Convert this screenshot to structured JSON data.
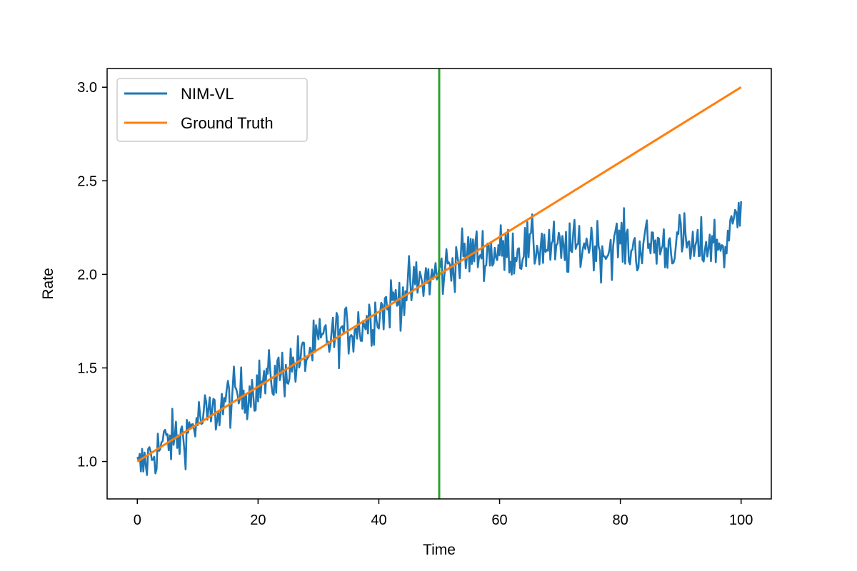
{
  "chart_data": {
    "type": "line",
    "title": "",
    "xlabel": "Time",
    "ylabel": "Rate",
    "xlim": [
      -5,
      105
    ],
    "ylim": [
      0.8,
      3.1
    ],
    "xticks": [
      "0",
      "20",
      "40",
      "60",
      "80",
      "100"
    ],
    "yticks": [
      "1.0",
      "1.5",
      "2.0",
      "2.5",
      "3.0"
    ],
    "grid": false,
    "legend_position": "top-left",
    "colors": {
      "nim_vl": "#1f77b4",
      "ground_truth": "#ff7f0e",
      "vline": "#2ca02c"
    },
    "series": [
      {
        "name": "NIM-VL",
        "x": [
          0,
          2.5,
          5,
          7.5,
          10,
          12.5,
          15,
          17.5,
          20,
          22.5,
          25,
          27.5,
          30,
          32.5,
          35,
          37.5,
          40,
          42.5,
          45,
          47.5,
          50,
          52.5,
          55,
          57.5,
          60,
          62.5,
          65,
          67.5,
          70,
          72.5,
          75,
          77.5,
          80,
          82.5,
          85,
          87.5,
          90,
          92.5,
          95,
          97.5,
          100
        ],
        "y": [
          0.95,
          1.04,
          1.11,
          1.13,
          1.22,
          1.25,
          1.33,
          1.36,
          1.41,
          1.45,
          1.5,
          1.55,
          1.63,
          1.67,
          1.7,
          1.74,
          1.8,
          1.86,
          1.92,
          1.97,
          2.0,
          2.07,
          2.11,
          2.12,
          2.12,
          2.13,
          2.14,
          2.16,
          2.12,
          2.14,
          2.18,
          2.12,
          2.18,
          2.13,
          2.17,
          2.14,
          2.19,
          2.12,
          2.18,
          2.14,
          2.39
        ],
        "noise_amplitude": 0.12
      },
      {
        "name": "Ground Truth",
        "x": [
          0,
          100
        ],
        "y": [
          1.0,
          3.0
        ]
      }
    ],
    "vertical_line_x": 50
  }
}
